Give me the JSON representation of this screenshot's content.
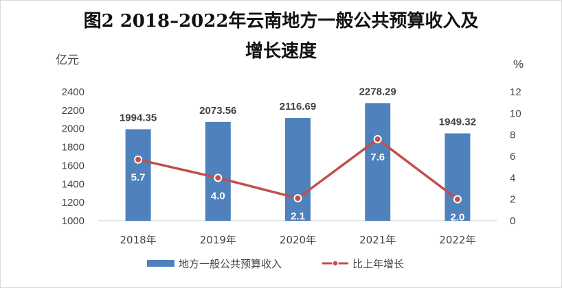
{
  "chart_data": {
    "type": "bar",
    "title_line1": "图2  2018–2022年云南地方一般公共预算收入及",
    "title_line2": "增长速度",
    "y_left_unit": "亿元",
    "y_right_unit": "%",
    "categories": [
      "2018年",
      "2019年",
      "2020年",
      "2021年",
      "2022年"
    ],
    "series": [
      {
        "name": "地方一般公共预算收入",
        "type": "bar",
        "axis": "left",
        "color": "#4f81bd",
        "values": [
          1994.35,
          2073.56,
          2116.69,
          2278.29,
          1949.32
        ],
        "labels": [
          "1994.35",
          "2073.56",
          "2116.69",
          "2278.29",
          "1949.32"
        ]
      },
      {
        "name": "比上年增长",
        "type": "line",
        "axis": "right",
        "color": "#c0504d",
        "values": [
          5.7,
          4.0,
          2.1,
          7.6,
          2.0
        ],
        "labels": [
          "5.7",
          "4.0",
          "2.1",
          "7.6",
          "2.0"
        ]
      }
    ],
    "y_left_range": [
      1000,
      2400
    ],
    "y_left_ticks": [
      "2400",
      "2200",
      "2000",
      "1800",
      "1600",
      "1400",
      "1200",
      "1000"
    ],
    "y_right_range": [
      0,
      12
    ],
    "y_right_ticks": [
      "12",
      "10",
      "8",
      "6",
      "4",
      "2",
      "0"
    ],
    "grid": false,
    "legend_position": "bottom"
  }
}
